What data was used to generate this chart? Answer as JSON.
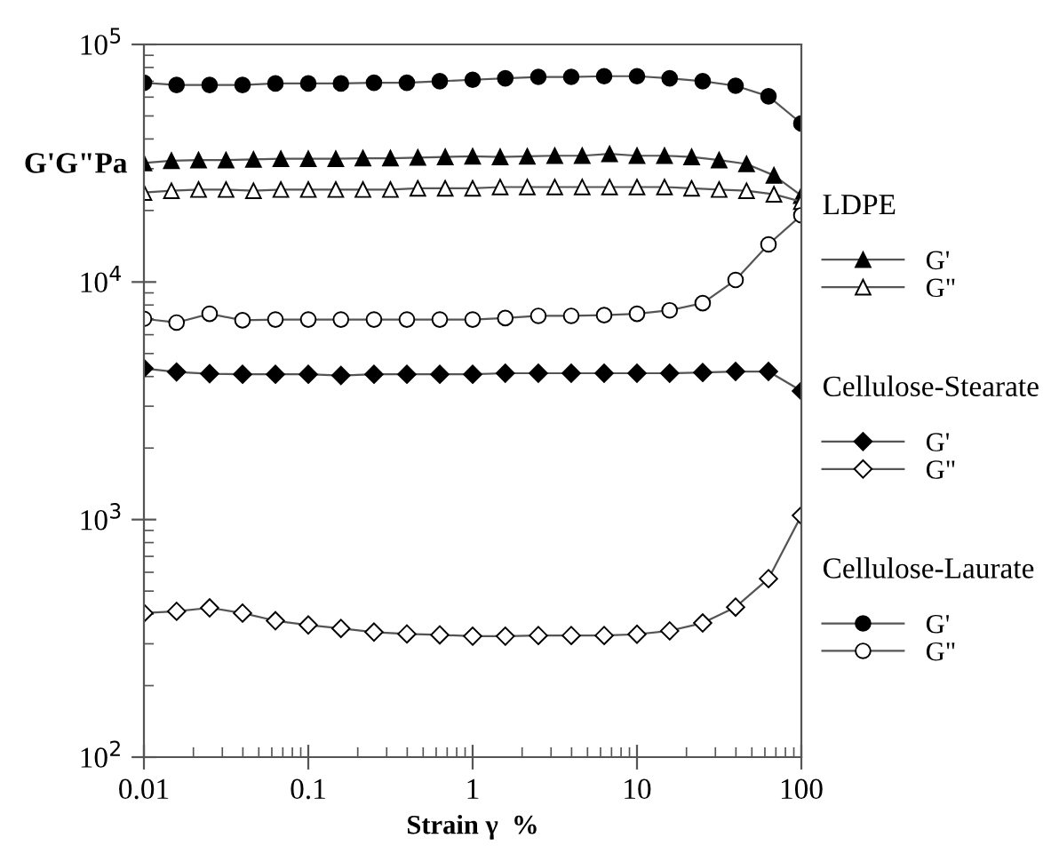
{
  "chart_data": {
    "type": "line",
    "xlabel": "Strain γ  %",
    "ylabel": "G'G\"Pa",
    "log": "xy",
    "grid": false,
    "legend": "right",
    "annotations": [
      "LDPE",
      "Cellulose-Stearate",
      "Cellulose-Laurate"
    ],
    "xlim": [
      0.01,
      100
    ],
    "xticks": [
      0.01,
      0.1,
      1,
      10,
      100
    ],
    "ylim": [
      100,
      100000
    ],
    "yticks": [
      {
        "value": 100,
        "label": "10$^{2}$"
      },
      {
        "value": 1000,
        "label": "10$^{3}$"
      },
      {
        "value": 10000,
        "label": "10$^{4}$"
      },
      {
        "value": 100000,
        "label": "10$^{5}$"
      }
    ],
    "series": [
      {
        "name": "G'",
        "color": "#000000",
        "marker": "triangle",
        "x": [
          0.01,
          0.0147,
          0.0215,
          0.0316,
          0.0464,
          0.0681,
          0.1,
          0.147,
          0.215,
          0.316,
          0.464,
          0.681,
          1,
          1.47,
          2.15,
          3.16,
          4.64,
          6.81,
          10,
          14.7,
          21.5,
          31.6,
          46.4,
          68.1,
          100
        ],
        "values": [
          31700,
          32400,
          32600,
          32600,
          32800,
          33000,
          33000,
          33000,
          33200,
          33200,
          33400,
          33600,
          33800,
          33600,
          33800,
          34000,
          34000,
          34600,
          34000,
          34000,
          33600,
          32600,
          31400,
          28100,
          23100
        ]
      },
      {
        "name": "G\"",
        "color": "#ffffff",
        "marker": "triangle",
        "x": [
          0.01,
          0.0147,
          0.0215,
          0.0316,
          0.0464,
          0.0681,
          0.1,
          0.147,
          0.215,
          0.316,
          0.464,
          0.681,
          1,
          1.47,
          2.15,
          3.16,
          4.64,
          6.81,
          10,
          14.7,
          21.5,
          31.6,
          46.4,
          68.1,
          100
        ],
        "values": [
          23800,
          24200,
          24500,
          24500,
          24200,
          24500,
          24500,
          24500,
          24500,
          24500,
          24800,
          24800,
          24800,
          25100,
          25100,
          25100,
          25100,
          25100,
          25100,
          25100,
          24800,
          24500,
          24200,
          23400,
          21800
        ]
      },
      {
        "name": "G'",
        "color": "#000000",
        "marker": "diamond",
        "x": [
          0.01,
          0.0158,
          0.0251,
          0.0398,
          0.0631,
          0.1,
          0.158,
          0.251,
          0.398,
          0.631,
          1,
          1.58,
          2.51,
          3.98,
          6.31,
          10,
          15.8,
          25.1,
          39.8,
          63.1,
          100
        ],
        "values": [
          4330,
          4180,
          4110,
          4090,
          4090,
          4090,
          4040,
          4090,
          4090,
          4090,
          4090,
          4130,
          4130,
          4130,
          4130,
          4130,
          4130,
          4160,
          4200,
          4200,
          3480
        ]
      },
      {
        "name": "G\"",
        "color": "#ffffff",
        "marker": "diamond",
        "x": [
          0.01,
          0.0158,
          0.0251,
          0.0398,
          0.0631,
          0.1,
          0.158,
          0.251,
          0.398,
          0.631,
          1,
          1.58,
          2.51,
          3.98,
          6.31,
          10,
          15.8,
          25.1,
          39.8,
          63.1,
          100
        ],
        "values": [
          404,
          411,
          425,
          404,
          375,
          360,
          348,
          336,
          330,
          327,
          323,
          323,
          325,
          325,
          325,
          329,
          340,
          367,
          428,
          564,
          1040
        ]
      },
      {
        "name": "G'",
        "color": "#000000",
        "marker": "circle",
        "x": [
          0.01,
          0.0158,
          0.0251,
          0.0398,
          0.0631,
          0.1,
          0.158,
          0.251,
          0.398,
          0.631,
          1,
          1.58,
          2.51,
          3.98,
          6.31,
          10,
          15.8,
          25.1,
          39.8,
          63.1,
          100
        ],
        "values": [
          69000,
          67500,
          67500,
          67500,
          68500,
          68500,
          68500,
          69000,
          69000,
          70000,
          71000,
          72000,
          73000,
          73000,
          73500,
          73500,
          72000,
          70000,
          67000,
          60500,
          46500
        ]
      },
      {
        "name": "G\"",
        "color": "#ffffff",
        "marker": "circle",
        "x": [
          0.01,
          0.0158,
          0.0251,
          0.0398,
          0.0631,
          0.1,
          0.158,
          0.251,
          0.398,
          0.631,
          1,
          1.58,
          2.51,
          3.98,
          6.31,
          10,
          15.8,
          25.1,
          39.8,
          63.1,
          100
        ],
        "values": [
          7000,
          6750,
          7350,
          6900,
          6950,
          6950,
          6950,
          6950,
          6950,
          6950,
          6950,
          7050,
          7200,
          7200,
          7250,
          7350,
          7600,
          8150,
          10200,
          14400,
          19100
        ]
      }
    ]
  }
}
